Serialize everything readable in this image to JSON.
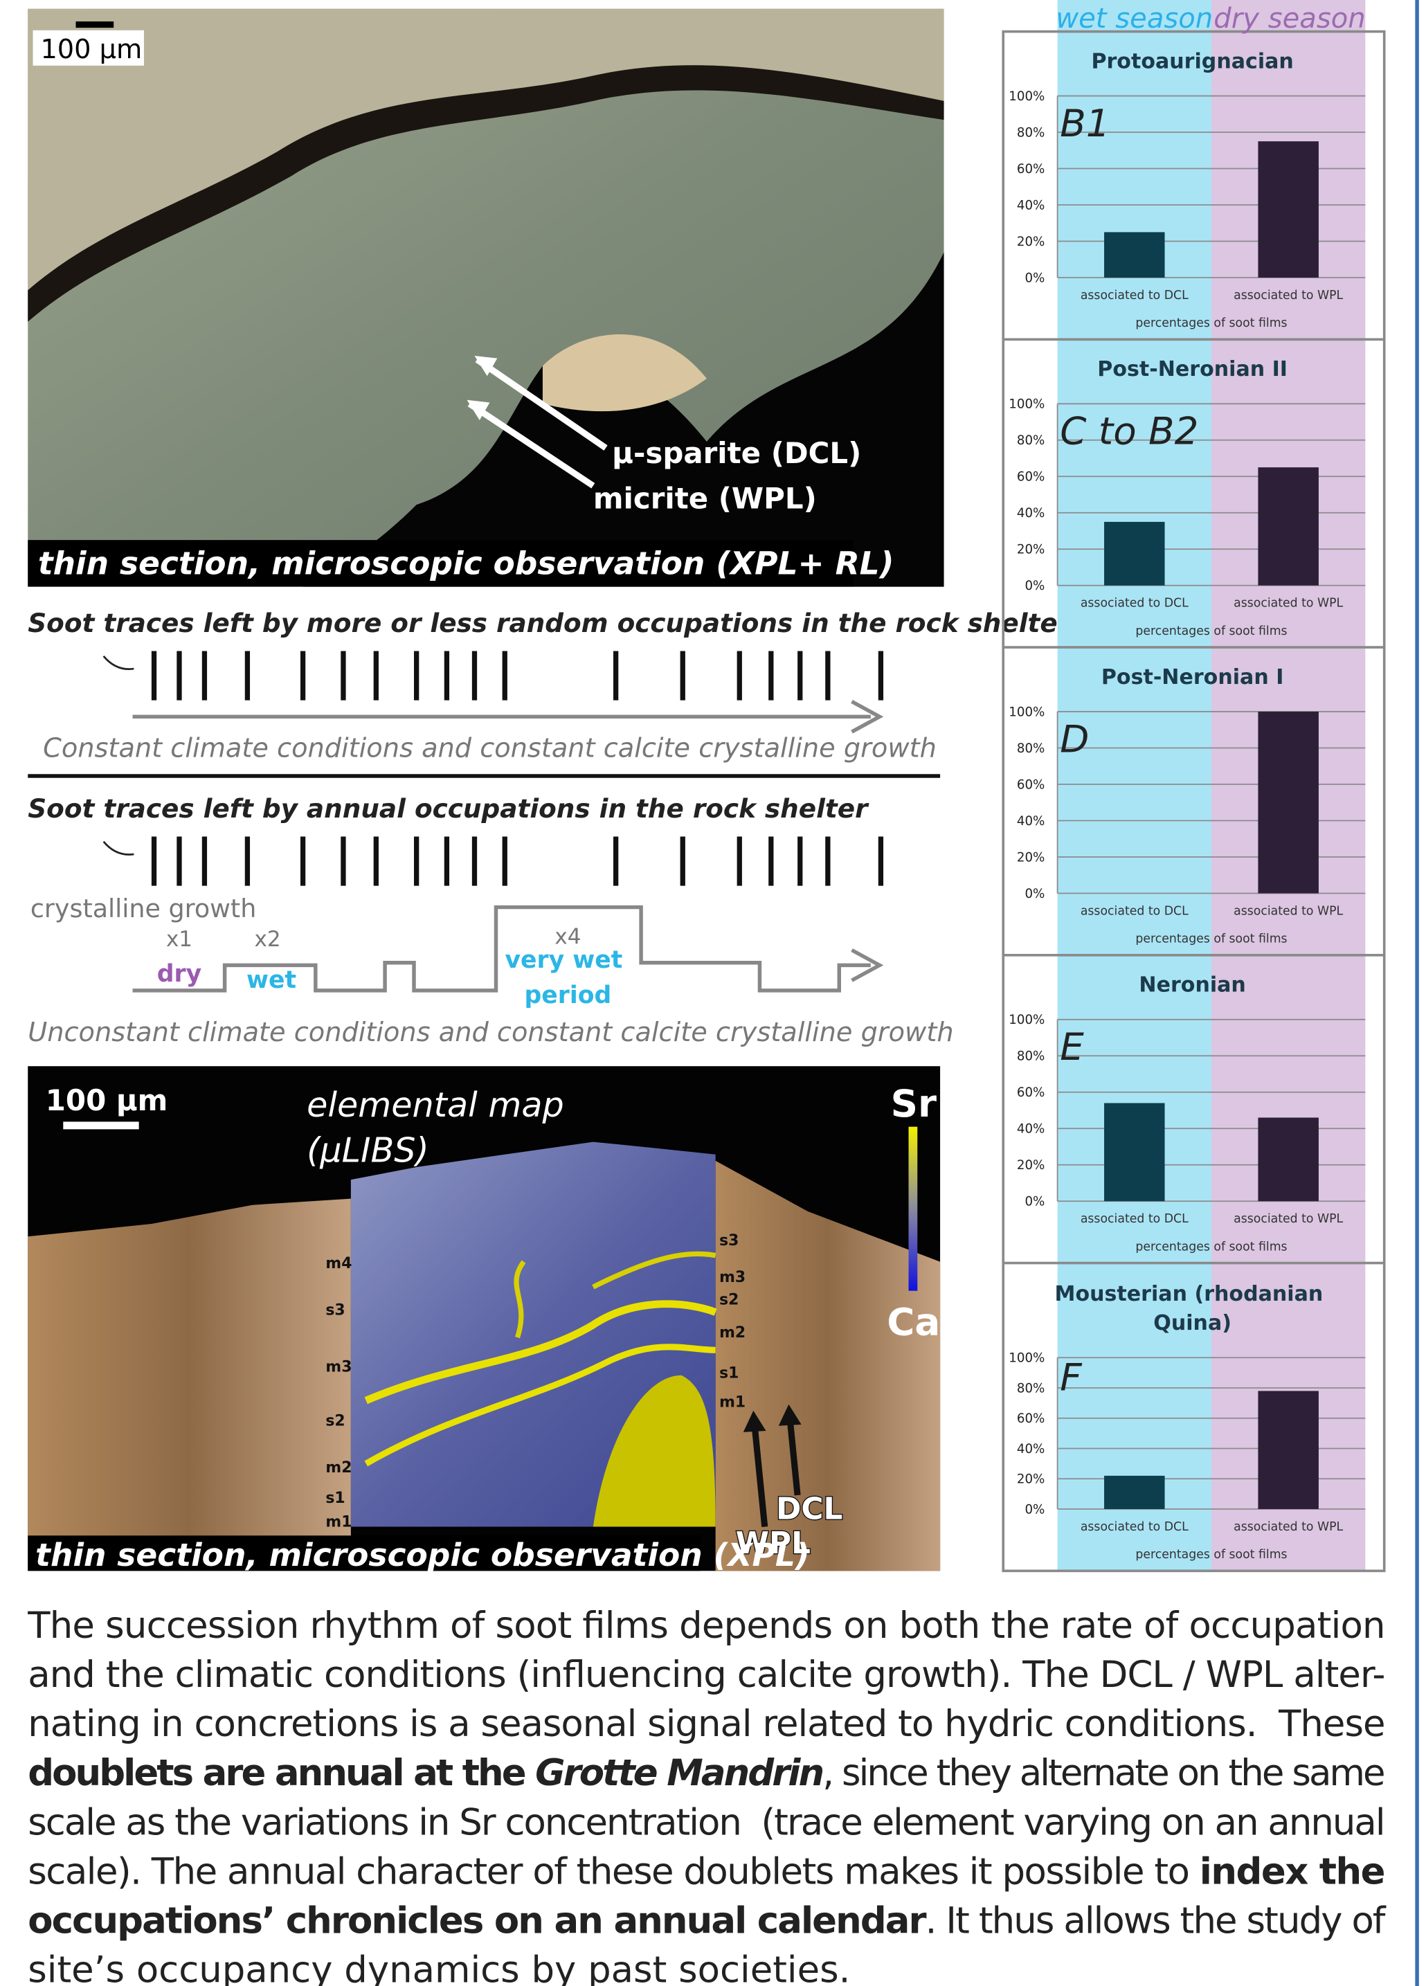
{
  "top_photo": {
    "scale_bar": "100 µm",
    "arrow_labels": [
      "µ-sparite (DCL)",
      "micrite (WPL)"
    ],
    "caption": "thin section, microscopic observation (XPL+ RL)"
  },
  "schematic": {
    "random": {
      "heading": "Soot traces left by more or less random occupations in the rock shelter",
      "caption": "Constant climate conditions and constant calcite crystalline growth"
    },
    "annual": {
      "heading": "Soot traces left by annual occupations in the rock shelter",
      "growth_label": "crystalline growth",
      "multipliers": [
        "x1",
        "x2",
        "x4"
      ],
      "periods": [
        "dry",
        "wet",
        "very wet period"
      ],
      "caption": "Unconstant climate conditions and constant calcite crystalline growth"
    }
  },
  "bottom_photo": {
    "scale_bar": "100 µm",
    "title": [
      "elemental map",
      "(µLIBS)"
    ],
    "legend": [
      "Sr",
      "Ca"
    ],
    "left_layers": [
      "m4",
      "s3",
      "m3",
      "s2",
      "m2",
      "s1",
      "m1"
    ],
    "right_layers": [
      "s3",
      "m3",
      "s2",
      "m2",
      "s1",
      "m1"
    ],
    "arrow_labels": [
      "DCL",
      "WPL"
    ],
    "caption": "thin section, microscopic observation (XPL)"
  },
  "season_labels": [
    "wet season",
    "dry season"
  ],
  "chart_data": [
    {
      "type": "bar",
      "title": "Protoaurignacian",
      "label": "B1",
      "categories": [
        "associated to DCL",
        "associated to WPL"
      ],
      "values": [
        25,
        75
      ],
      "colors": [
        "#0c3e4e",
        "#2e1f38"
      ],
      "xlabel": "percentages of soot films",
      "ylim": [
        0,
        100
      ],
      "yticks": [
        {
          "value": 0,
          "label": "0%"
        },
        {
          "value": 20,
          "label": "20%"
        },
        {
          "value": 40,
          "label": "40%"
        },
        {
          "value": 60,
          "label": "60%"
        },
        {
          "value": 80,
          "label": "80%"
        },
        {
          "value": 100,
          "label": "100%"
        }
      ],
      "grid": true
    },
    {
      "type": "bar",
      "title": "Post-Neronian II",
      "label": "C to B2",
      "categories": [
        "associated to DCL",
        "associated to WPL"
      ],
      "values": [
        35,
        65
      ],
      "colors": [
        "#0c3e4e",
        "#2e1f38"
      ],
      "xlabel": "percentages of soot films",
      "ylim": [
        0,
        100
      ],
      "yticks": [
        {
          "value": 0,
          "label": "0%"
        },
        {
          "value": 20,
          "label": "20%"
        },
        {
          "value": 40,
          "label": "40%"
        },
        {
          "value": 60,
          "label": "60%"
        },
        {
          "value": 80,
          "label": "80%"
        },
        {
          "value": 100,
          "label": "100%"
        }
      ],
      "grid": true
    },
    {
      "type": "bar",
      "title": "Post-Neronian I",
      "label": "D",
      "categories": [
        "associated to DCL",
        "associated to WPL"
      ],
      "values": [
        0,
        100
      ],
      "colors": [
        "#0c3e4e",
        "#2e1f38"
      ],
      "xlabel": "percentages of soot films",
      "ylim": [
        0,
        100
      ],
      "yticks": [
        {
          "value": 0,
          "label": "0%"
        },
        {
          "value": 20,
          "label": "20%"
        },
        {
          "value": 40,
          "label": "40%"
        },
        {
          "value": 60,
          "label": "60%"
        },
        {
          "value": 80,
          "label": "80%"
        },
        {
          "value": 100,
          "label": "100%"
        }
      ],
      "grid": true
    },
    {
      "type": "bar",
      "title": "Neronian",
      "label": "E",
      "categories": [
        "associated to DCL",
        "associated to WPL"
      ],
      "values": [
        54,
        46
      ],
      "colors": [
        "#0c3e4e",
        "#2e1f38"
      ],
      "xlabel": "percentages of soot films",
      "ylim": [
        0,
        100
      ],
      "yticks": [
        {
          "value": 0,
          "label": "0%"
        },
        {
          "value": 20,
          "label": "20%"
        },
        {
          "value": 40,
          "label": "40%"
        },
        {
          "value": 60,
          "label": "60%"
        },
        {
          "value": 80,
          "label": "80%"
        },
        {
          "value": 100,
          "label": "100%"
        }
      ],
      "grid": true
    },
    {
      "type": "bar",
      "title": "Mousterian (rhodanian Quina)",
      "label": "F",
      "categories": [
        "associated to DCL",
        "associated to WPL"
      ],
      "values": [
        22,
        78
      ],
      "colors": [
        "#0c3e4e",
        "#2e1f38"
      ],
      "xlabel": "percentages of soot films",
      "ylim": [
        0,
        100
      ],
      "yticks": [
        {
          "value": 0,
          "label": "0%"
        },
        {
          "value": 20,
          "label": "20%"
        },
        {
          "value": 40,
          "label": "40%"
        },
        {
          "value": 60,
          "label": "60%"
        },
        {
          "value": 80,
          "label": "80%"
        },
        {
          "value": 100,
          "label": "100%"
        }
      ],
      "grid": true
    }
  ],
  "paragraph": {
    "lines": [
      [
        {
          "text": "The succession rhythm of soot films depends on both the rate of occupation",
          "style": "normal"
        }
      ],
      [
        {
          "text": "and the climatic conditions (influencing calcite growth). The DCL / WPL alter-",
          "style": "normal"
        }
      ],
      [
        {
          "text": "nating in concretions is a seasonal signal related to hydric conditions.  These",
          "style": "normal"
        }
      ],
      [
        {
          "text": "doublets are annual at the ",
          "style": "bold"
        },
        {
          "text": "Grotte Mandrin",
          "style": "bold-italic"
        },
        {
          "text": ", since they alternate on the same",
          "style": "normal"
        }
      ],
      [
        {
          "text": "scale as the variations in Sr concentration  (trace element varying on an annual",
          "style": "normal"
        }
      ],
      [
        {
          "text": "scale). The annual character of these doublets makes it possible to ",
          "style": "normal"
        },
        {
          "text": "index the",
          "style": "bold"
        }
      ],
      [
        {
          "text": "occupations’ chronicles on an annual calendar",
          "style": "bold"
        },
        {
          "text": ". It thus allows the study of",
          "style": "normal"
        }
      ],
      [
        {
          "text": "site’s occupancy dynamics by past societies.",
          "style": "normal"
        }
      ]
    ]
  }
}
